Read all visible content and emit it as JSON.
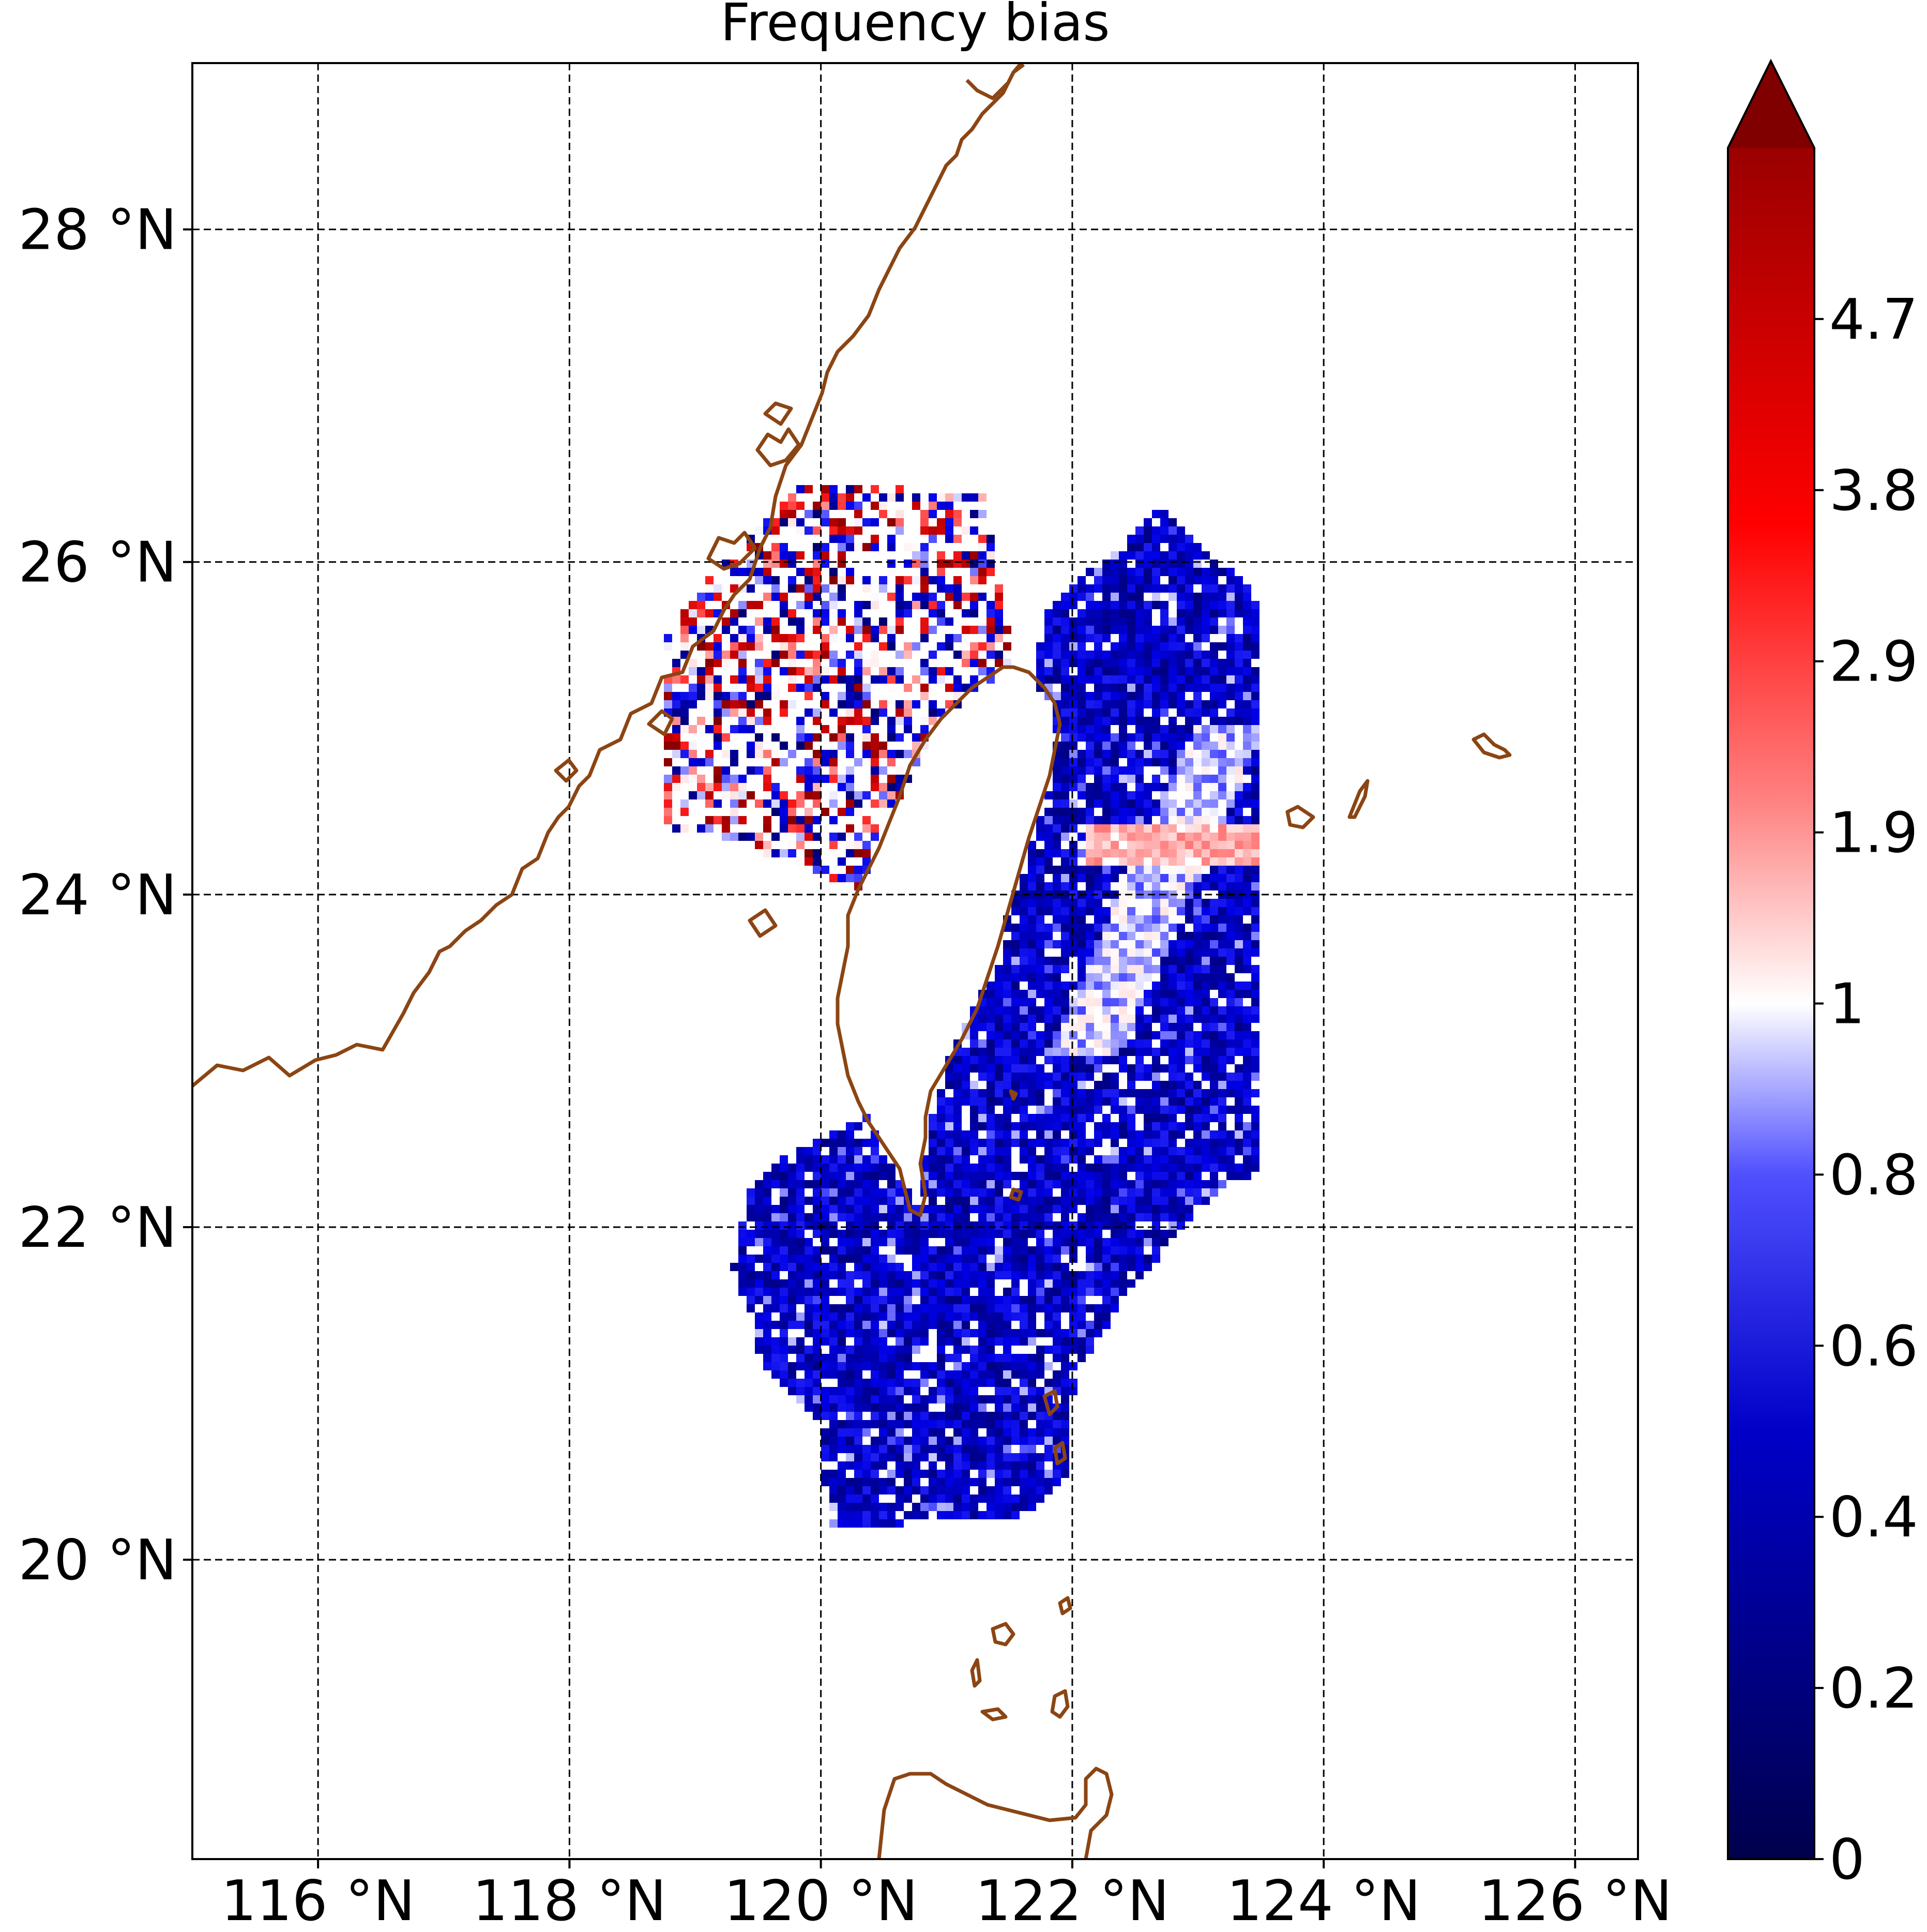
{
  "title": "Frequency bias",
  "x_tick_labels": [
    "116 °N",
    "118 °N",
    "120 °N",
    "122 °N",
    "124 °N",
    "126 °N"
  ],
  "y_tick_labels": [
    "28 °N",
    "26 °N",
    "24 °N",
    "22 °N",
    "20 °N"
  ],
  "colorbar": {
    "tick_labels": [
      "4.7",
      "3.8",
      "2.9",
      "1.9",
      "1",
      "0.8",
      "0.6",
      "0.4",
      "0.2",
      "0"
    ],
    "extend": "max",
    "colors": {
      "low": "#00004c",
      "mid": "#ffffff",
      "high": "#800000"
    }
  },
  "coastline_color": "#8b4513",
  "colors": {
    "low_bias": "#1a1ae6",
    "high_bias": "#e61a1a",
    "grid": "#000000"
  },
  "chart_data": {
    "type": "heatmap",
    "title": "Frequency bias",
    "x_range": [
      115,
      126.5
    ],
    "y_range": [
      18.2,
      29
    ],
    "x_ticks": [
      116,
      118,
      120,
      122,
      124,
      126
    ],
    "y_ticks": [
      20,
      22,
      24,
      26,
      28
    ],
    "grid": true,
    "colorbar_ticks": [
      0,
      0.2,
      0.4,
      0.6,
      0.8,
      1,
      1.9,
      2.9,
      3.8,
      4.7
    ]
  }
}
